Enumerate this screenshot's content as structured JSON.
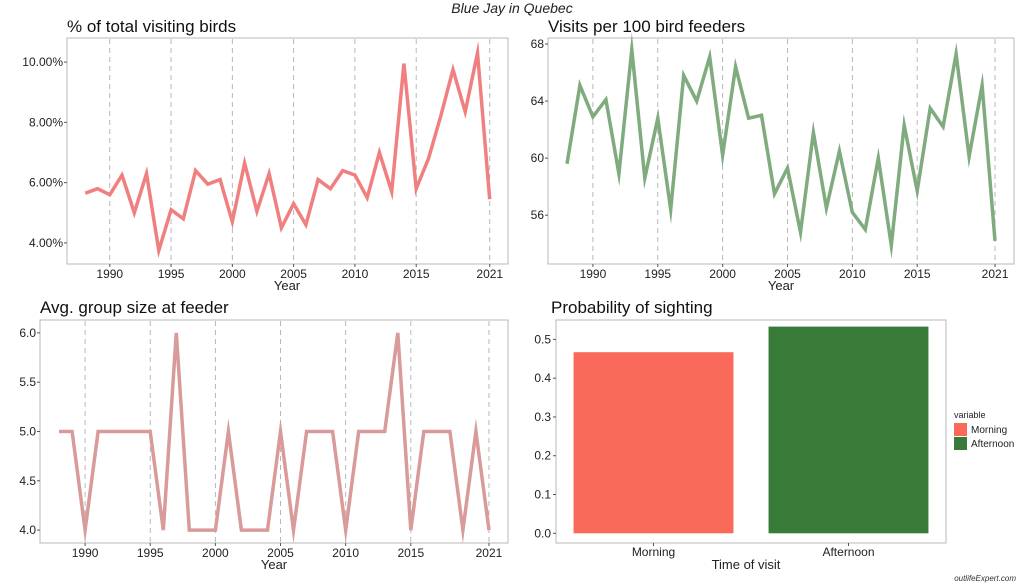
{
  "title": "Blue Jay in Quebec",
  "watermark": "outlifeExpert.com",
  "colors": {
    "line1": "#f08080",
    "line2": "#7fab7f",
    "line3": "#d99a9a",
    "morning": "#fa6a5a",
    "afternoon": "#387a38",
    "grid": "#b0b0b0",
    "frame": "#b8b8b8"
  },
  "chart_data": [
    {
      "type": "line",
      "title": "% of total visiting birds",
      "xlabel": "Year",
      "ylabel": "",
      "grid": "vertical dashed",
      "xlim": [
        1987,
        2022
      ],
      "ylim": [
        3.5,
        10.6
      ],
      "xticks": [
        1990,
        1995,
        2000,
        2005,
        2010,
        2015,
        2021
      ],
      "yticks": [
        4,
        6,
        8,
        10
      ],
      "ytick_labels": [
        "4.00%",
        "6.00%",
        "8.00%",
        "10.00%"
      ],
      "series": [
        {
          "x": [
            1988,
            1989,
            1990,
            1991,
            1992,
            1993,
            1994,
            1995,
            1996,
            1997,
            1998,
            1999,
            2000,
            2001,
            2002,
            2003,
            2004,
            2005,
            2006,
            2007,
            2008,
            2009,
            2010,
            2011,
            2012,
            2013,
            2014,
            2015,
            2016,
            2017,
            2018,
            2019,
            2020,
            2021
          ],
          "values": [
            5.65,
            5.8,
            5.6,
            6.25,
            5.0,
            6.3,
            3.75,
            5.1,
            4.8,
            6.4,
            5.95,
            6.1,
            4.7,
            6.65,
            5.05,
            6.3,
            4.5,
            5.3,
            4.6,
            6.1,
            5.8,
            6.4,
            6.25,
            5.5,
            7.0,
            5.7,
            9.95,
            5.8,
            6.8,
            8.2,
            9.75,
            8.35,
            10.3,
            5.45
          ]
        }
      ]
    },
    {
      "type": "line",
      "title": "Visits per 100 bird feeders",
      "xlabel": "Year",
      "ylabel": "",
      "grid": "vertical dashed",
      "xlim": [
        1987,
        2022
      ],
      "ylim": [
        53,
        68
      ],
      "xticks": [
        1990,
        1995,
        2000,
        2005,
        2010,
        2015,
        2021
      ],
      "yticks": [
        56,
        60,
        64,
        68
      ],
      "ytick_labels": [
        "56",
        "60",
        "64",
        "68"
      ],
      "series": [
        {
          "x": [
            1988,
            1989,
            1990,
            1991,
            1992,
            1993,
            1994,
            1995,
            1996,
            1997,
            1998,
            1999,
            2000,
            2001,
            2002,
            2003,
            2004,
            2005,
            2006,
            2007,
            2008,
            2009,
            2010,
            2011,
            2012,
            2013,
            2014,
            2015,
            2016,
            2017,
            2018,
            2019,
            2020,
            2021
          ],
          "values": [
            59.6,
            65.1,
            62.9,
            64.1,
            58.9,
            67.6,
            58.6,
            62.8,
            56.4,
            65.8,
            64.0,
            67.1,
            60.2,
            66.4,
            62.8,
            63.0,
            57.5,
            59.3,
            54.8,
            61.8,
            56.5,
            60.5,
            56.2,
            55.0,
            60.0,
            53.9,
            62.3,
            57.7,
            63.5,
            62.2,
            67.3,
            60.1,
            65.1,
            54.2
          ]
        }
      ]
    },
    {
      "type": "line",
      "title": "Avg. group size at feeder",
      "xlabel": "Year",
      "ylabel": "",
      "grid": "vertical dashed",
      "xlim": [
        1987,
        2022
      ],
      "ylim": [
        3.93,
        6.07
      ],
      "xticks": [
        1990,
        1995,
        2000,
        2005,
        2010,
        2015,
        2021
      ],
      "yticks": [
        4.0,
        4.5,
        5.0,
        5.5,
        6.0
      ],
      "ytick_labels": [
        "4.0",
        "4.5",
        "5.0",
        "5.5",
        "6.0"
      ],
      "series": [
        {
          "x": [
            1988,
            1989,
            1990,
            1991,
            1992,
            1993,
            1994,
            1995,
            1996,
            1997,
            1998,
            1999,
            2000,
            2001,
            2002,
            2003,
            2004,
            2005,
            2006,
            2007,
            2008,
            2009,
            2010,
            2011,
            2012,
            2013,
            2014,
            2015,
            2016,
            2017,
            2018,
            2019,
            2020,
            2021
          ],
          "values": [
            5,
            5,
            4,
            5,
            5,
            5,
            5,
            5,
            4,
            6,
            4,
            4,
            4,
            5,
            4,
            4,
            4,
            5,
            4,
            5,
            5,
            5,
            4,
            5,
            5,
            5,
            6,
            4,
            5,
            5,
            5,
            4,
            5,
            4
          ]
        }
      ]
    },
    {
      "type": "bar",
      "title": "Probability of sighting",
      "xlabel": "Time of visit",
      "ylabel": "",
      "categories": [
        "Morning",
        "Afternoon"
      ],
      "values": [
        0.467,
        0.533
      ],
      "ylim": [
        -0.025,
        0.55
      ],
      "yticks": [
        0,
        0.1,
        0.2,
        0.3,
        0.4,
        0.5
      ],
      "ytick_labels": [
        "0.0",
        "0.1",
        "0.2",
        "0.3",
        "0.4",
        "0.5"
      ],
      "legend": {
        "title": "variable",
        "entries": [
          "Morning",
          "Afternoon"
        ],
        "position": "right"
      }
    }
  ]
}
